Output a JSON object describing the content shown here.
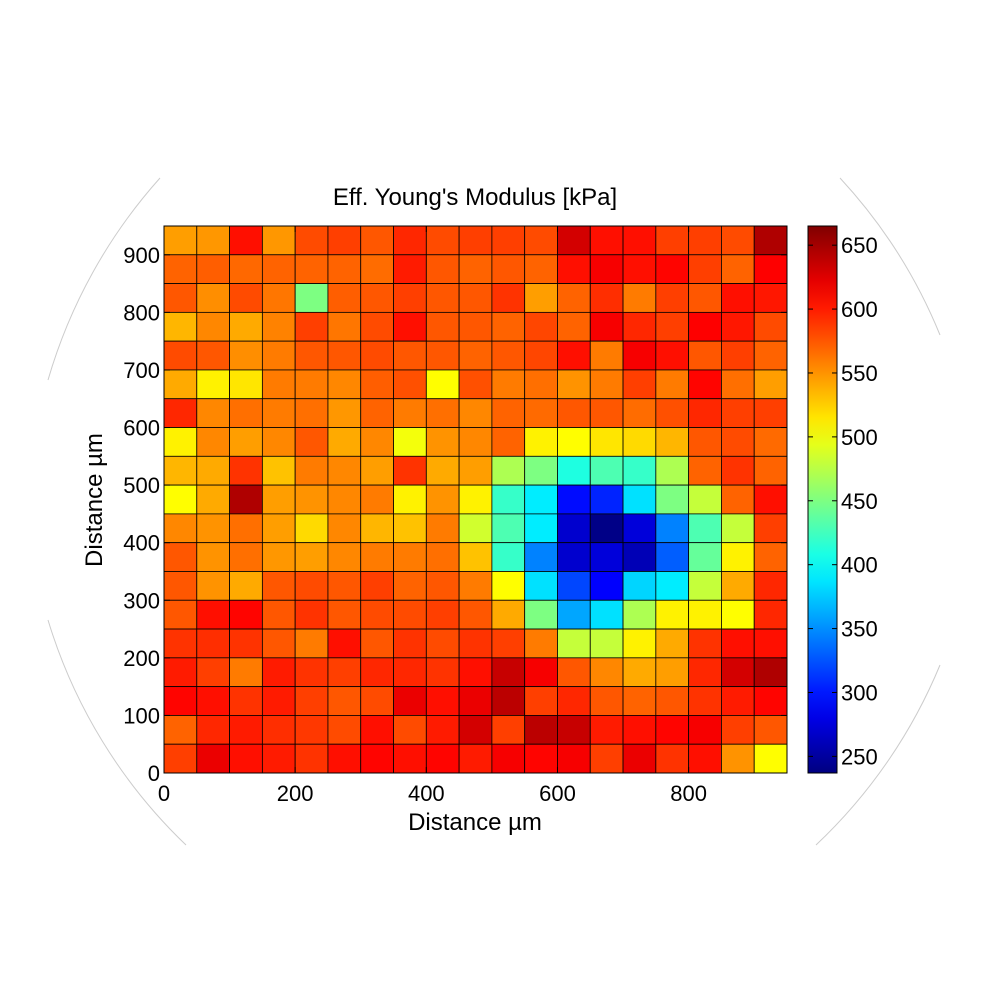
{
  "chart_data": {
    "type": "heatmap",
    "title": "Eff. Young's Modulus [kPa]",
    "xlabel": "Distance µm",
    "ylabel": "Distance µm",
    "x_ticks": [
      0,
      200,
      400,
      600,
      800
    ],
    "y_ticks": [
      0,
      100,
      200,
      300,
      400,
      500,
      600,
      700,
      800,
      900
    ],
    "xlim": [
      0,
      950
    ],
    "ylim": [
      0,
      950
    ],
    "cell_size": 50,
    "colormap": "jet",
    "clim": [
      237,
      665
    ],
    "colorbar_ticks": [
      250,
      300,
      350,
      400,
      450,
      500,
      550,
      600,
      650
    ],
    "rows_top_to_bottom": [
      [
        545,
        548,
        605,
        548,
        580,
        585,
        575,
        595,
        580,
        585,
        585,
        580,
        630,
        605,
        605,
        585,
        585,
        580,
        645
      ],
      [
        570,
        572,
        568,
        570,
        570,
        570,
        566,
        600,
        575,
        570,
        575,
        570,
        605,
        615,
        605,
        610,
        585,
        570,
        612
      ],
      [
        575,
        552,
        580,
        562,
        450,
        572,
        575,
        585,
        575,
        575,
        590,
        545,
        570,
        592,
        560,
        585,
        575,
        605,
        602
      ],
      [
        535,
        555,
        540,
        557,
        585,
        562,
        580,
        605,
        575,
        575,
        570,
        582,
        570,
        615,
        595,
        585,
        612,
        602,
        580
      ],
      [
        580,
        575,
        552,
        560,
        575,
        575,
        580,
        575,
        575,
        570,
        575,
        582,
        605,
        560,
        615,
        605,
        575,
        585,
        570
      ],
      [
        540,
        510,
        515,
        560,
        560,
        555,
        572,
        578,
        505,
        578,
        560,
        565,
        550,
        560,
        585,
        560,
        610,
        565,
        545
      ],
      [
        595,
        555,
        565,
        560,
        565,
        548,
        570,
        560,
        565,
        555,
        570,
        567,
        575,
        575,
        566,
        578,
        595,
        585,
        585
      ],
      [
        510,
        555,
        545,
        555,
        575,
        540,
        555,
        500,
        550,
        555,
        570,
        510,
        505,
        515,
        520,
        535,
        575,
        580,
        567
      ],
      [
        535,
        540,
        590,
        530,
        560,
        555,
        545,
        590,
        540,
        545,
        470,
        450,
        410,
        430,
        420,
        470,
        570,
        590,
        570
      ],
      [
        505,
        540,
        645,
        545,
        550,
        555,
        560,
        510,
        550,
        510,
        420,
        390,
        295,
        305,
        385,
        450,
        480,
        570,
        605
      ],
      [
        555,
        550,
        565,
        545,
        520,
        555,
        535,
        530,
        560,
        485,
        430,
        390,
        270,
        240,
        275,
        345,
        430,
        480,
        585
      ],
      [
        575,
        550,
        565,
        548,
        545,
        555,
        560,
        560,
        565,
        530,
        420,
        345,
        270,
        275,
        260,
        330,
        440,
        510,
        570
      ],
      [
        575,
        550,
        540,
        575,
        580,
        575,
        585,
        570,
        575,
        560,
        505,
        385,
        320,
        290,
        380,
        390,
        480,
        540,
        595
      ],
      [
        575,
        605,
        610,
        575,
        590,
        575,
        580,
        580,
        585,
        575,
        540,
        450,
        360,
        385,
        470,
        510,
        510,
        505,
        595
      ],
      [
        590,
        592,
        590,
        575,
        560,
        605,
        575,
        590,
        580,
        590,
        585,
        560,
        480,
        480,
        510,
        540,
        590,
        605,
        605
      ],
      [
        600,
        585,
        560,
        600,
        590,
        585,
        595,
        595,
        590,
        605,
        635,
        615,
        575,
        555,
        540,
        545,
        595,
        630,
        645
      ],
      [
        610,
        605,
        590,
        600,
        585,
        575,
        580,
        620,
        605,
        620,
        640,
        585,
        595,
        575,
        570,
        575,
        590,
        600,
        610
      ],
      [
        570,
        595,
        600,
        592,
        588,
        580,
        605,
        580,
        600,
        630,
        585,
        640,
        635,
        600,
        605,
        610,
        615,
        585,
        575
      ],
      [
        585,
        620,
        605,
        600,
        590,
        605,
        610,
        605,
        610,
        600,
        615,
        610,
        615,
        585,
        620,
        590,
        605,
        550,
        505
      ]
    ]
  }
}
